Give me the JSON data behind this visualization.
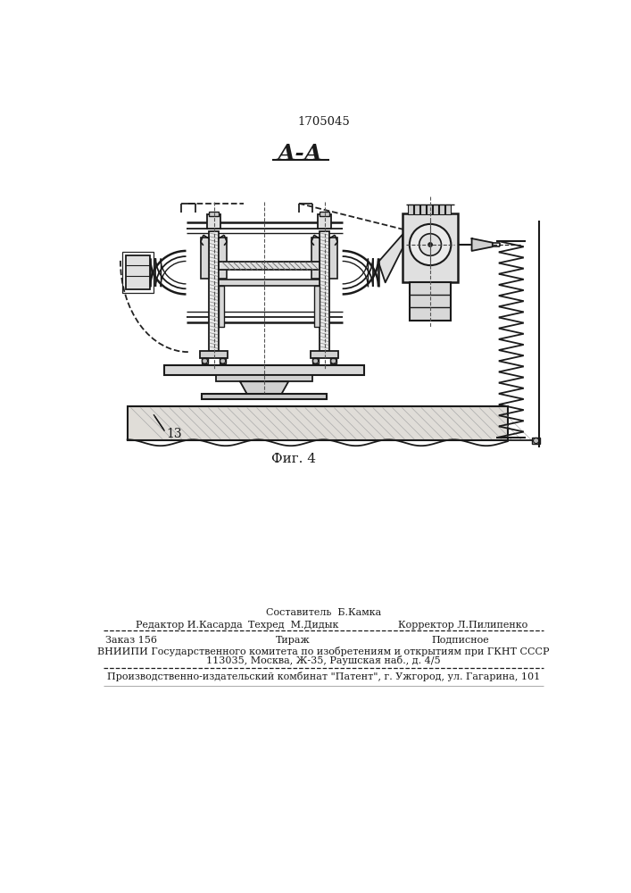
{
  "patent_number": "1705045",
  "section_label": "А-А",
  "fig_label": "Фиг. 4",
  "part_label": "13",
  "footer_line1_left": "Редактор И.Касарда",
  "footer_line1_center_top": "Составитель  Б.Камка",
  "footer_line1_center": "Техред  М.Дидык",
  "footer_line1_right": "Корректор Л.Пилипенко",
  "footer_line2_left": "Заказ 156",
  "footer_line2_center": "Тираж",
  "footer_line2_right": "Подписное",
  "footer_line3": "ВНИИПИ Государственного комитета по изобретениям и открытиям при ГКНТ СССР",
  "footer_line4": "113035, Москва, Ж-35, Раушская наб., д. 4/5",
  "footer_line5": "Производственно-издательский комбинат \"Патент\", г. Ужгород, ул. Гагарина, 101",
  "line_color": "#1a1a1a",
  "dashed_color": "#222222"
}
